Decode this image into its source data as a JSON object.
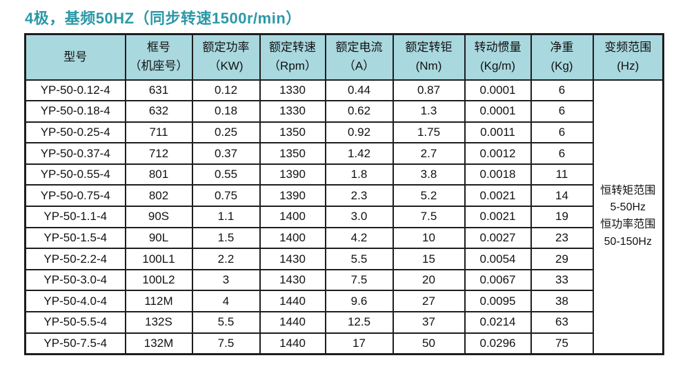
{
  "title": "4极，基频50HZ（同步转速1500r/min）",
  "colors": {
    "title": "#2b98a6",
    "header_bg": "#a9d8df",
    "border": "#1d1d1d",
    "text": "#111111",
    "page_bg": "#ffffff"
  },
  "table": {
    "headers": [
      {
        "line1": "型号",
        "line2": ""
      },
      {
        "line1": "框号",
        "line2": "（机座号）"
      },
      {
        "line1": "额定功率",
        "line2": "（KW)"
      },
      {
        "line1": "额定转速",
        "line2": "（Rpm）"
      },
      {
        "line1": "额定电流",
        "line2": "（A）"
      },
      {
        "line1": "额定转钜",
        "line2": "(Nm)"
      },
      {
        "line1": "转动惯量",
        "line2": "(Kg/m)"
      },
      {
        "line1": "净重",
        "line2": "(Kg)"
      },
      {
        "line1": "变频范围",
        "line2": "(Hz)"
      }
    ],
    "rows": [
      [
        "YP-50-0.12-4",
        "631",
        "0.12",
        "1330",
        "0.44",
        "0.87",
        "0.0001",
        "6"
      ],
      [
        "YP-50-0.18-4",
        "632",
        "0.18",
        "1330",
        "0.62",
        "1.3",
        "0.0001",
        "6"
      ],
      [
        "YP-50-0.25-4",
        "711",
        "0.25",
        "1350",
        "0.92",
        "1.75",
        "0.0011",
        "6"
      ],
      [
        "YP-50-0.37-4",
        "712",
        "0.37",
        "1350",
        "1.42",
        "2.7",
        "0.0012",
        "6"
      ],
      [
        "YP-50-0.55-4",
        "801",
        "0.55",
        "1390",
        "1.8",
        "3.8",
        "0.0018",
        "11"
      ],
      [
        "YP-50-0.75-4",
        "802",
        "0.75",
        "1390",
        "2.3",
        "5.2",
        "0.0021",
        "14"
      ],
      [
        "YP-50-1.1-4",
        "90S",
        "1.1",
        "1400",
        "3.0",
        "7.5",
        "0.0021",
        "19"
      ],
      [
        "YP-50-1.5-4",
        "90L",
        "1.5",
        "1400",
        "4.2",
        "10",
        "0.0027",
        "23"
      ],
      [
        "YP-50-2.2-4",
        "100L1",
        "2.2",
        "1430",
        "5.5",
        "15",
        "0.0054",
        "29"
      ],
      [
        "YP-50-3.0-4",
        "100L2",
        "3",
        "1430",
        "7.5",
        "20",
        "0.0067",
        "33"
      ],
      [
        "YP-50-4.0-4",
        "112M",
        "4",
        "1440",
        "9.6",
        "27",
        "0.0095",
        "38"
      ],
      [
        "YP-50-5.5-4",
        "132S",
        "5.5",
        "1440",
        "12.5",
        "37",
        "0.0214",
        "63"
      ],
      [
        "YP-50-7.5-4",
        "132M",
        "7.5",
        "1440",
        "17",
        "50",
        "0.0296",
        "75"
      ]
    ],
    "merged_cell_lines": [
      "恒转矩范围",
      "5-50Hz",
      "恒功率范围",
      "50-150Hz"
    ]
  }
}
